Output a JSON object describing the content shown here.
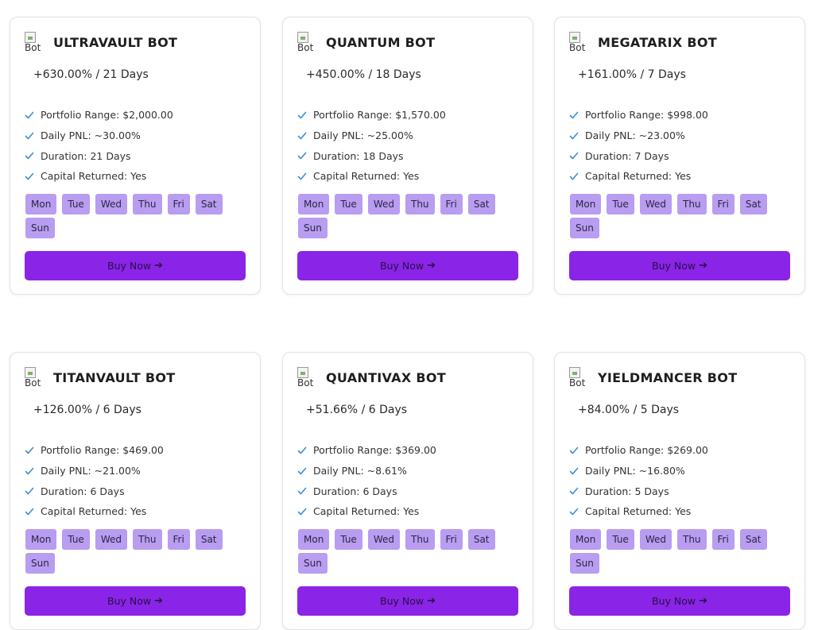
{
  "colors": {
    "accent": "#8a24e6",
    "day_chip": "#b89df0",
    "check": "#3a8fd6"
  },
  "icons": {
    "feature_bullet": "check-icon",
    "button_arrow": "arrow-right-icon",
    "bot_image": "broken-image-icon"
  },
  "cards": [
    {
      "img_alt": "Bot",
      "name": "ULTRAVAULT BOT",
      "roi": "+630.00% / 21 Days",
      "features": [
        "Portfolio Range: $2,000.00",
        "Daily PNL: ~30.00%",
        "Duration: 21 Days",
        "Capital Returned: Yes"
      ],
      "days": [
        "Mon",
        "Tue",
        "Wed",
        "Thu",
        "Fri",
        "Sat",
        "Sun"
      ],
      "button": "Buy Now"
    },
    {
      "img_alt": "Bot",
      "name": "QUANTUM BOT",
      "roi": "+450.00% / 18 Days",
      "features": [
        "Portfolio Range: $1,570.00",
        "Daily PNL: ~25.00%",
        "Duration: 18 Days",
        "Capital Returned: Yes"
      ],
      "days": [
        "Mon",
        "Tue",
        "Wed",
        "Thu",
        "Fri",
        "Sat",
        "Sun"
      ],
      "button": "Buy Now"
    },
    {
      "img_alt": "Bot",
      "name": "MEGATARIX BOT",
      "roi": "+161.00% / 7 Days",
      "features": [
        "Portfolio Range: $998.00",
        "Daily PNL: ~23.00%",
        "Duration: 7 Days",
        "Capital Returned: Yes"
      ],
      "days": [
        "Mon",
        "Tue",
        "Wed",
        "Thu",
        "Fri",
        "Sat",
        "Sun"
      ],
      "button": "Buy Now"
    },
    {
      "img_alt": "Bot",
      "name": "TITANVAULT BOT",
      "roi": "+126.00% / 6 Days",
      "features": [
        "Portfolio Range: $469.00",
        "Daily PNL: ~21.00%",
        "Duration: 6 Days",
        "Capital Returned: Yes"
      ],
      "days": [
        "Mon",
        "Tue",
        "Wed",
        "Thu",
        "Fri",
        "Sat",
        "Sun"
      ],
      "button": "Buy Now"
    },
    {
      "img_alt": "Bot",
      "name": "QUANTIVAX BOT",
      "roi": "+51.66% / 6 Days",
      "features": [
        "Portfolio Range: $369.00",
        "Daily PNL: ~8.61%",
        "Duration: 6 Days",
        "Capital Returned: Yes"
      ],
      "days": [
        "Mon",
        "Tue",
        "Wed",
        "Thu",
        "Fri",
        "Sat",
        "Sun"
      ],
      "button": "Buy Now"
    },
    {
      "img_alt": "Bot",
      "name": "YIELDMANCER BOT",
      "roi": "+84.00% / 5 Days",
      "features": [
        "Portfolio Range: $269.00",
        "Daily PNL: ~16.80%",
        "Duration: 5 Days",
        "Capital Returned: Yes"
      ],
      "days": [
        "Mon",
        "Tue",
        "Wed",
        "Thu",
        "Fri",
        "Sat",
        "Sun"
      ],
      "button": "Buy Now"
    }
  ]
}
